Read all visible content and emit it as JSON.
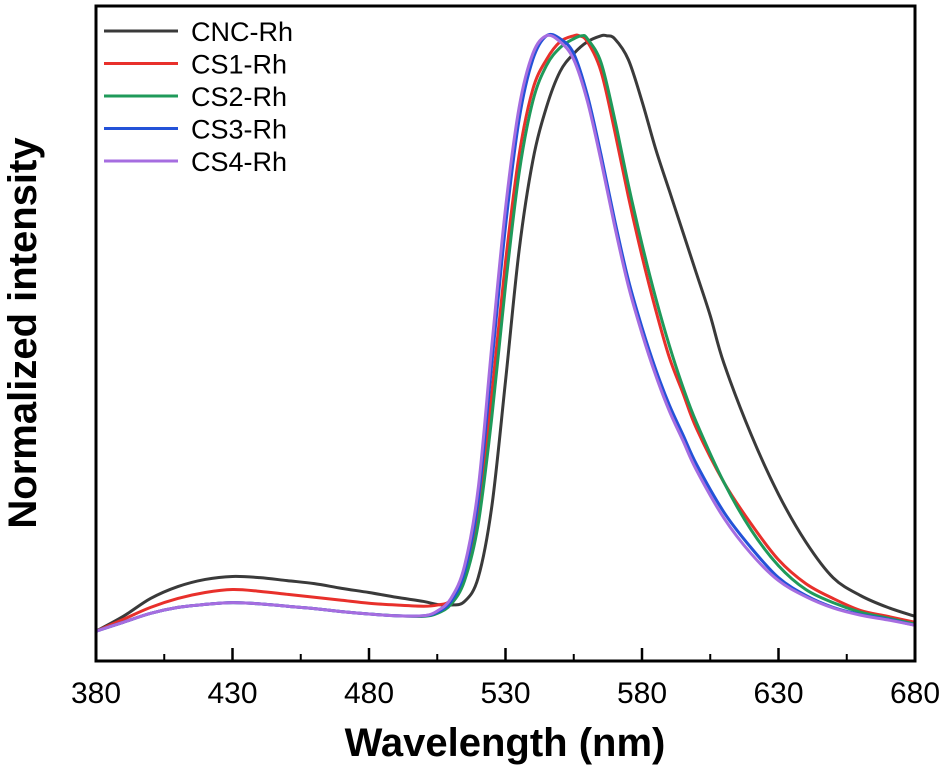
{
  "chart_data": {
    "type": "line",
    "title": "",
    "xlabel": "Wavelength (nm)",
    "ylabel": "Normalized intensity",
    "xlim": [
      380,
      680
    ],
    "ylim": [
      -0.05,
      1.05
    ],
    "xticks": [
      380,
      430,
      480,
      530,
      580,
      630,
      680
    ],
    "xtick_labels": [
      "380",
      "430",
      "480",
      "530",
      "580",
      "630",
      "680"
    ],
    "minor_xticks": [
      405,
      455,
      505,
      555,
      605,
      655
    ],
    "yticks_shown": false,
    "grid": false,
    "legend_position": "top-left",
    "series": [
      {
        "name": "CNC-Rh",
        "color": "#3a3a3a",
        "x": [
          380,
          390,
          400,
          410,
          420,
          430,
          440,
          450,
          460,
          470,
          480,
          490,
          500,
          505,
          510,
          515,
          520,
          525,
          530,
          535,
          540,
          545,
          550,
          555,
          560,
          565,
          567,
          570,
          575,
          580,
          585,
          590,
          595,
          600,
          605,
          610,
          620,
          630,
          640,
          650,
          660,
          670,
          680
        ],
        "y": [
          0.0,
          0.025,
          0.055,
          0.075,
          0.087,
          0.092,
          0.09,
          0.085,
          0.08,
          0.072,
          0.065,
          0.057,
          0.05,
          0.045,
          0.044,
          0.05,
          0.09,
          0.21,
          0.42,
          0.64,
          0.79,
          0.88,
          0.94,
          0.97,
          0.99,
          1.0,
          1.0,
          0.995,
          0.96,
          0.89,
          0.81,
          0.74,
          0.67,
          0.6,
          0.53,
          0.45,
          0.33,
          0.23,
          0.15,
          0.09,
          0.06,
          0.04,
          0.025
        ]
      },
      {
        "name": "CS1-Rh",
        "color": "#e8302b",
        "x": [
          380,
          390,
          400,
          410,
          420,
          430,
          440,
          450,
          460,
          470,
          480,
          490,
          500,
          505,
          510,
          515,
          520,
          525,
          530,
          535,
          540,
          545,
          550,
          555,
          557,
          560,
          565,
          570,
          575,
          580,
          585,
          590,
          595,
          600,
          610,
          620,
          630,
          640,
          650,
          660,
          670,
          680
        ],
        "y": [
          0.0,
          0.02,
          0.04,
          0.055,
          0.065,
          0.07,
          0.067,
          0.062,
          0.057,
          0.052,
          0.047,
          0.044,
          0.042,
          0.044,
          0.052,
          0.09,
          0.2,
          0.4,
          0.62,
          0.8,
          0.91,
          0.96,
          0.99,
          1.0,
          1.0,
          0.99,
          0.94,
          0.84,
          0.73,
          0.63,
          0.54,
          0.46,
          0.4,
          0.34,
          0.25,
          0.18,
          0.12,
          0.08,
          0.055,
          0.035,
          0.025,
          0.015
        ]
      },
      {
        "name": "CS2-Rh",
        "color": "#1f9a5a",
        "x": [
          380,
          390,
          400,
          410,
          420,
          430,
          440,
          450,
          460,
          470,
          480,
          490,
          500,
          505,
          510,
          515,
          520,
          525,
          530,
          535,
          540,
          545,
          550,
          555,
          558,
          560,
          565,
          570,
          575,
          580,
          585,
          590,
          595,
          600,
          610,
          620,
          630,
          640,
          650,
          660,
          670,
          680
        ],
        "y": [
          0.0,
          0.015,
          0.03,
          0.04,
          0.045,
          0.048,
          0.046,
          0.042,
          0.038,
          0.033,
          0.029,
          0.026,
          0.025,
          0.03,
          0.045,
          0.085,
          0.18,
          0.36,
          0.58,
          0.77,
          0.89,
          0.95,
          0.98,
          0.995,
          1.0,
          0.995,
          0.955,
          0.86,
          0.75,
          0.65,
          0.56,
          0.48,
          0.41,
          0.35,
          0.25,
          0.17,
          0.11,
          0.07,
          0.048,
          0.032,
          0.022,
          0.012
        ]
      },
      {
        "name": "CS3-Rh",
        "color": "#2352d8",
        "x": [
          380,
          390,
          400,
          410,
          420,
          430,
          440,
          450,
          460,
          470,
          480,
          490,
          500,
          505,
          510,
          515,
          520,
          525,
          530,
          535,
          540,
          545,
          550,
          555,
          560,
          565,
          570,
          575,
          580,
          585,
          590,
          595,
          600,
          610,
          620,
          630,
          640,
          650,
          660,
          670,
          680
        ],
        "y": [
          0.0,
          0.015,
          0.03,
          0.04,
          0.045,
          0.048,
          0.046,
          0.042,
          0.038,
          0.033,
          0.029,
          0.026,
          0.026,
          0.032,
          0.05,
          0.1,
          0.22,
          0.45,
          0.68,
          0.86,
          0.96,
          1.0,
          0.995,
          0.97,
          0.9,
          0.8,
          0.69,
          0.59,
          0.51,
          0.44,
          0.38,
          0.33,
          0.28,
          0.2,
          0.14,
          0.09,
          0.06,
          0.04,
          0.028,
          0.02,
          0.01
        ]
      },
      {
        "name": "CS4-Rh",
        "color": "#a66de0",
        "x": [
          380,
          390,
          400,
          410,
          420,
          430,
          440,
          450,
          460,
          470,
          480,
          490,
          500,
          505,
          510,
          515,
          520,
          525,
          530,
          535,
          540,
          545,
          550,
          555,
          560,
          565,
          570,
          575,
          580,
          585,
          590,
          595,
          600,
          610,
          620,
          630,
          640,
          650,
          660,
          670,
          680
        ],
        "y": [
          0.0,
          0.015,
          0.03,
          0.04,
          0.045,
          0.048,
          0.046,
          0.042,
          0.038,
          0.033,
          0.029,
          0.026,
          0.026,
          0.034,
          0.055,
          0.11,
          0.24,
          0.48,
          0.71,
          0.88,
          0.97,
          1.0,
          0.99,
          0.96,
          0.89,
          0.79,
          0.68,
          0.58,
          0.5,
          0.43,
          0.37,
          0.32,
          0.27,
          0.19,
          0.13,
          0.085,
          0.058,
          0.039,
          0.027,
          0.019,
          0.01
        ]
      }
    ]
  }
}
